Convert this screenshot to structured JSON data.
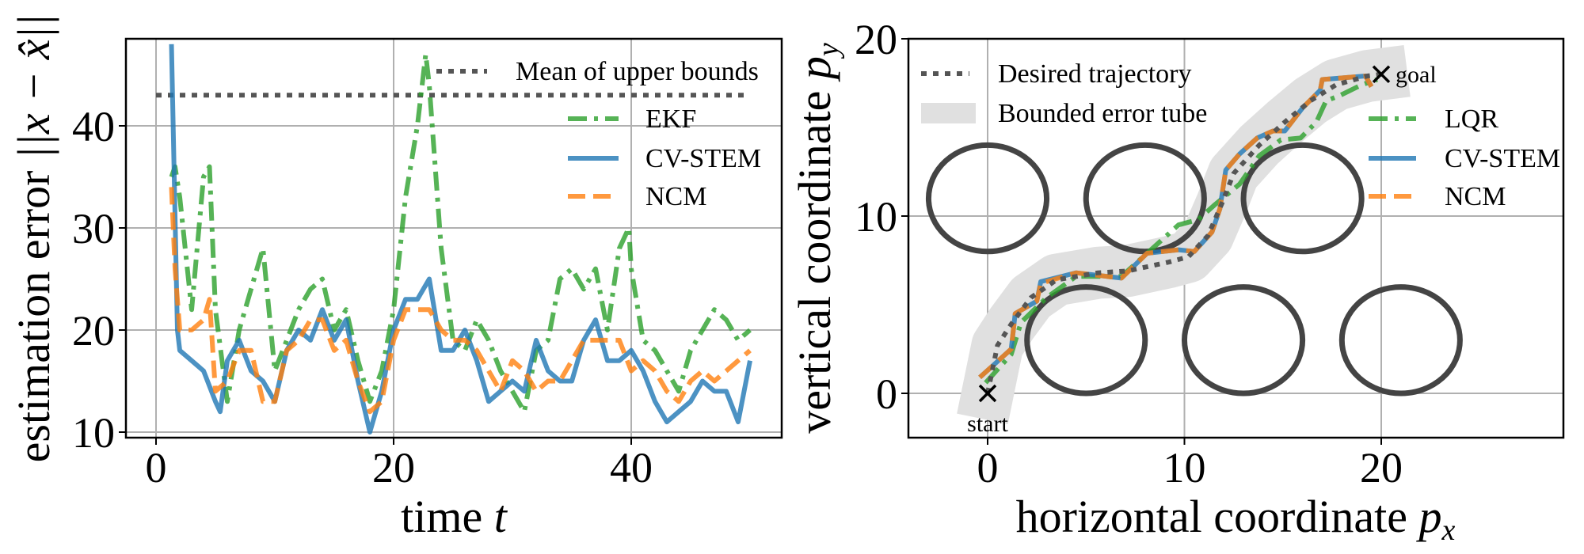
{
  "chart_data": [
    {
      "type": "line",
      "xlabel": "time",
      "xlabel_math": "t",
      "ylabel": "estimation error",
      "ylabel_math": "||x − x̂||",
      "xlim": [
        -2.5,
        52.7
      ],
      "ylim": [
        9.5,
        48.5
      ],
      "xticks": [
        0,
        20,
        40
      ],
      "yticks": [
        10,
        20,
        30,
        40
      ],
      "grid": true,
      "legend_placement": "top-right",
      "reference_line": {
        "name": "Mean of upper bounds",
        "y": 43,
        "x": [
          0,
          50
        ],
        "color": "#555555",
        "style": "dotted"
      },
      "series": [
        {
          "name": "EKF",
          "color": "#2ca02c",
          "style": "dashdot",
          "x": [
            1.3,
            1.6,
            2,
            3,
            4,
            4.5,
            5,
            6,
            7,
            8,
            9,
            10,
            11,
            12,
            13,
            14,
            15,
            16,
            17,
            18,
            19,
            20,
            21,
            22,
            22.7,
            23,
            24,
            25,
            26,
            27,
            28,
            29,
            30,
            31,
            32,
            33,
            34,
            35,
            36,
            37,
            38,
            39,
            39.8,
            40,
            41,
            42,
            43,
            44,
            45,
            46,
            47,
            48,
            49,
            50
          ],
          "y": [
            35,
            36,
            33,
            22,
            35,
            36,
            22,
            13,
            20,
            24,
            28,
            16,
            19,
            22,
            24,
            25,
            20,
            22,
            17,
            13,
            16,
            22,
            33,
            40,
            47,
            44,
            28,
            19,
            18,
            21,
            19,
            16,
            14,
            12,
            18,
            19,
            25,
            26,
            24,
            26,
            20,
            28,
            30,
            26,
            19,
            18,
            16,
            14,
            18,
            20,
            22,
            21,
            19,
            20
          ]
        },
        {
          "name": "CV-STEM",
          "color": "#1f77b4",
          "style": "solid",
          "x": [
            1.3,
            1.8,
            2,
            3,
            4,
            5,
            5.4,
            6,
            7,
            8,
            9,
            10,
            11,
            12,
            13,
            14,
            15,
            16,
            17,
            18,
            19,
            20,
            21,
            22,
            23,
            24,
            25,
            26,
            27,
            28,
            29,
            30,
            31,
            32,
            33,
            34,
            35,
            36,
            37,
            38,
            39,
            40,
            41,
            42,
            43,
            44,
            45,
            46,
            47,
            48,
            49,
            50
          ],
          "y": [
            48,
            20,
            18,
            17,
            16,
            13,
            12,
            17,
            19,
            16,
            15,
            13,
            18,
            20,
            19,
            22,
            19,
            21,
            15,
            10,
            14,
            20,
            23,
            23,
            25,
            18,
            18,
            20,
            17,
            13,
            14,
            15,
            14,
            19,
            16,
            15,
            15,
            19,
            21,
            17,
            17,
            18,
            16,
            13,
            11,
            12,
            13,
            15,
            14,
            14,
            11,
            17
          ]
        },
        {
          "name": "NCM",
          "color": "#ff7f0e",
          "style": "dashed",
          "x": [
            1.3,
            1.6,
            2,
            3,
            4,
            4.5,
            5,
            6,
            7,
            8,
            9,
            10,
            11,
            12,
            13,
            14,
            15,
            16,
            17,
            18,
            19,
            20,
            21,
            22,
            23,
            24,
            25,
            26,
            27,
            28,
            29,
            30,
            31,
            32,
            33,
            34,
            35,
            36,
            37,
            38,
            39,
            40,
            41,
            42,
            43,
            44,
            45,
            46,
            47,
            48,
            49,
            50
          ],
          "y": [
            34,
            26,
            20,
            20,
            21,
            23,
            14,
            15,
            18,
            18,
            13,
            13,
            18,
            19,
            21,
            21,
            18,
            19,
            15,
            12,
            13,
            19,
            22,
            22,
            22,
            20,
            19,
            19,
            18,
            16,
            14,
            17,
            16,
            14,
            15,
            15,
            17,
            19,
            19,
            19,
            19,
            16,
            17,
            16,
            14,
            13,
            15,
            16,
            15,
            16,
            17,
            18
          ]
        }
      ]
    },
    {
      "type": "line",
      "xlabel": "horizontal coordinate",
      "xlabel_math": "p",
      "xlabel_sub": "x",
      "ylabel": "vertical coordinate",
      "ylabel_math": "p",
      "ylabel_sub": "y",
      "xlim": [
        -4,
        29.3
      ],
      "ylim": [
        -2.5,
        20
      ],
      "xticks": [
        0,
        10,
        20
      ],
      "yticks": [
        0,
        10,
        20
      ],
      "grid": true,
      "legend_placement": "top-left and right",
      "obstacles": [
        {
          "cx": 0,
          "cy": 11,
          "r": 3
        },
        {
          "cx": 8,
          "cy": 11,
          "r": 3
        },
        {
          "cx": 16,
          "cy": 11,
          "r": 3
        },
        {
          "cx": 5,
          "cy": 3,
          "r": 3
        },
        {
          "cx": 13,
          "cy": 3,
          "r": 3
        },
        {
          "cx": 21,
          "cy": 3,
          "r": 3
        }
      ],
      "obstacle_color": "#444444",
      "markers": [
        {
          "label": "start",
          "x": 0,
          "y": 0
        },
        {
          "label": "goal",
          "x": 20,
          "y": 18
        }
      ],
      "desired": {
        "name": "Desired trajectory",
        "color": "#555555",
        "style": "dotted",
        "x": [
          0,
          0.5,
          1.2,
          2.2,
          3.5,
          5.6,
          7.1,
          9.2,
          10.2,
          11.2,
          11.9,
          12.5,
          13.8,
          15.1,
          16.4,
          17.7,
          19.3,
          20
        ],
        "y": [
          0,
          2.7,
          3.9,
          5.4,
          6.4,
          6.8,
          6.9,
          7.4,
          7.7,
          8.9,
          10.7,
          12.4,
          14,
          15.3,
          16.5,
          17.4,
          17.9,
          18
        ]
      },
      "tube": {
        "name": "Bounded error tube",
        "color": "#e0e0e0",
        "half_width": 1.4
      },
      "series": [
        {
          "name": "LQR",
          "color": "#2ca02c",
          "style": "dashdot",
          "x": [
            -0.1,
            1.2,
            1.7,
            3,
            4.5,
            6.8,
            8.7,
            9.7,
            10.7,
            11.5,
            12.8,
            13.8,
            14.9,
            15.9,
            16.7,
            17.2,
            17.9,
            19,
            19.8
          ],
          "y": [
            0.6,
            2.2,
            4.0,
            5.4,
            6.6,
            6.6,
            8.5,
            9.5,
            9.8,
            10.6,
            11.8,
            13.4,
            14.3,
            14.4,
            15.3,
            16.5,
            16.8,
            17.4,
            17.7
          ]
        },
        {
          "name": "CV-STEM",
          "color": "#1f77b4",
          "style": "solid",
          "x": [
            -0.4,
            0.3,
            1.2,
            1.4,
            2.5,
            2.7,
            4.5,
            6.8,
            8.1,
            9.7,
            10.5,
            11.4,
            11.8,
            12.1,
            12.8,
            13.7,
            14.5,
            15.1,
            16,
            16.9,
            17,
            19.2,
            19.5
          ],
          "y": [
            0.9,
            1.6,
            2.5,
            4.5,
            5.2,
            6.3,
            6.8,
            6.5,
            7.9,
            8.1,
            8.0,
            9.1,
            10.4,
            12.6,
            13.5,
            14.4,
            14.8,
            14.8,
            16.1,
            17.1,
            17.7,
            17.9,
            17.3
          ]
        },
        {
          "name": "NCM",
          "color": "#ff7f0e",
          "style": "dashed",
          "x": [
            -0.4,
            0.3,
            1.2,
            1.4,
            2.5,
            2.7,
            4.5,
            6.8,
            8.1,
            9.7,
            10.5,
            11.4,
            11.8,
            12.1,
            12.8,
            13.7,
            14.5,
            15.1,
            16,
            16.9,
            17,
            19.2,
            19.5
          ],
          "y": [
            0.9,
            1.6,
            2.5,
            4.5,
            5.2,
            6.2,
            6.8,
            6.5,
            7.9,
            8.1,
            8.0,
            9.1,
            10.4,
            12.6,
            13.5,
            14.4,
            14.8,
            14.8,
            16.1,
            17.1,
            17.7,
            17.9,
            17.3
          ]
        }
      ]
    }
  ]
}
